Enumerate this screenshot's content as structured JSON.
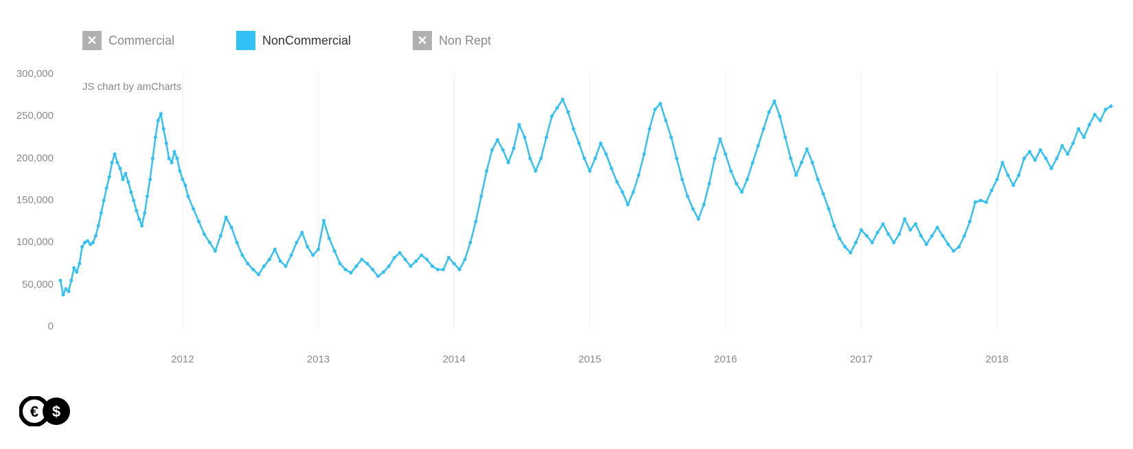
{
  "legend": {
    "items": [
      {
        "label": "Commercial",
        "active": false,
        "marker": "x",
        "color": "#b0b0b0"
      },
      {
        "label": "NonCommercial",
        "active": true,
        "marker": "box",
        "color": "#33c1f3"
      },
      {
        "label": "Non Rept",
        "active": false,
        "marker": "x",
        "color": "#b0b0b0"
      }
    ]
  },
  "credit": "JS chart by amCharts",
  "chart": {
    "type": "line",
    "background_color": "#ffffff",
    "grid_color": "#ececec",
    "series_color": "#33c1f3",
    "line_width": 2.5,
    "marker_radius": 2.5,
    "label_color": "#8a8a8a",
    "label_fontsize": 15,
    "y": {
      "min": 0,
      "max": 300000,
      "step": 50000,
      "ticks": [
        0,
        50000,
        100000,
        150000,
        200000,
        250000,
        300000
      ],
      "tick_labels": [
        "0",
        "50,000",
        "100,000",
        "150,000",
        "200,000",
        "250,000",
        "300,000"
      ]
    },
    "x": {
      "min": 2011.1,
      "max": 2018.85,
      "ticks": [
        2012,
        2013,
        2014,
        2015,
        2016,
        2017,
        2018
      ],
      "tick_labels": [
        "2012",
        "2013",
        "2014",
        "2015",
        "2016",
        "2017",
        "2018"
      ]
    },
    "series": [
      {
        "name": "NonCommercial",
        "points": [
          [
            2011.1,
            55000
          ],
          [
            2011.12,
            38000
          ],
          [
            2011.14,
            45000
          ],
          [
            2011.16,
            42000
          ],
          [
            2011.18,
            55000
          ],
          [
            2011.2,
            70000
          ],
          [
            2011.22,
            65000
          ],
          [
            2011.24,
            75000
          ],
          [
            2011.26,
            95000
          ],
          [
            2011.28,
            100000
          ],
          [
            2011.3,
            102000
          ],
          [
            2011.32,
            98000
          ],
          [
            2011.34,
            100000
          ],
          [
            2011.36,
            108000
          ],
          [
            2011.38,
            120000
          ],
          [
            2011.4,
            135000
          ],
          [
            2011.42,
            150000
          ],
          [
            2011.44,
            165000
          ],
          [
            2011.46,
            178000
          ],
          [
            2011.48,
            195000
          ],
          [
            2011.5,
            205000
          ],
          [
            2011.52,
            195000
          ],
          [
            2011.54,
            188000
          ],
          [
            2011.56,
            175000
          ],
          [
            2011.58,
            182000
          ],
          [
            2011.6,
            172000
          ],
          [
            2011.62,
            160000
          ],
          [
            2011.64,
            150000
          ],
          [
            2011.66,
            138000
          ],
          [
            2011.68,
            128000
          ],
          [
            2011.7,
            120000
          ],
          [
            2011.72,
            135000
          ],
          [
            2011.74,
            155000
          ],
          [
            2011.76,
            175000
          ],
          [
            2011.78,
            200000
          ],
          [
            2011.8,
            225000
          ],
          [
            2011.82,
            245000
          ],
          [
            2011.84,
            253000
          ],
          [
            2011.86,
            235000
          ],
          [
            2011.88,
            218000
          ],
          [
            2011.9,
            200000
          ],
          [
            2011.92,
            195000
          ],
          [
            2011.94,
            208000
          ],
          [
            2011.96,
            200000
          ],
          [
            2011.98,
            185000
          ],
          [
            2012.0,
            175000
          ],
          [
            2012.02,
            168000
          ],
          [
            2012.04,
            155000
          ],
          [
            2012.08,
            140000
          ],
          [
            2012.12,
            125000
          ],
          [
            2012.16,
            110000
          ],
          [
            2012.2,
            100000
          ],
          [
            2012.24,
            90000
          ],
          [
            2012.28,
            108000
          ],
          [
            2012.32,
            130000
          ],
          [
            2012.36,
            118000
          ],
          [
            2012.4,
            100000
          ],
          [
            2012.44,
            85000
          ],
          [
            2012.48,
            75000
          ],
          [
            2012.52,
            68000
          ],
          [
            2012.56,
            62000
          ],
          [
            2012.6,
            72000
          ],
          [
            2012.64,
            80000
          ],
          [
            2012.68,
            92000
          ],
          [
            2012.72,
            78000
          ],
          [
            2012.76,
            72000
          ],
          [
            2012.8,
            85000
          ],
          [
            2012.84,
            100000
          ],
          [
            2012.88,
            112000
          ],
          [
            2012.92,
            95000
          ],
          [
            2012.96,
            85000
          ],
          [
            2013.0,
            92000
          ],
          [
            2013.04,
            126000
          ],
          [
            2013.08,
            105000
          ],
          [
            2013.12,
            90000
          ],
          [
            2013.16,
            75000
          ],
          [
            2013.2,
            68000
          ],
          [
            2013.24,
            64000
          ],
          [
            2013.28,
            72000
          ],
          [
            2013.32,
            80000
          ],
          [
            2013.36,
            75000
          ],
          [
            2013.4,
            68000
          ],
          [
            2013.44,
            60000
          ],
          [
            2013.48,
            65000
          ],
          [
            2013.52,
            72000
          ],
          [
            2013.56,
            82000
          ],
          [
            2013.6,
            88000
          ],
          [
            2013.64,
            80000
          ],
          [
            2013.68,
            72000
          ],
          [
            2013.72,
            78000
          ],
          [
            2013.76,
            85000
          ],
          [
            2013.8,
            80000
          ],
          [
            2013.84,
            72000
          ],
          [
            2013.88,
            68000
          ],
          [
            2013.92,
            68000
          ],
          [
            2013.96,
            82000
          ],
          [
            2014.0,
            75000
          ],
          [
            2014.04,
            68000
          ],
          [
            2014.08,
            80000
          ],
          [
            2014.12,
            100000
          ],
          [
            2014.16,
            125000
          ],
          [
            2014.2,
            155000
          ],
          [
            2014.24,
            185000
          ],
          [
            2014.28,
            210000
          ],
          [
            2014.32,
            222000
          ],
          [
            2014.36,
            210000
          ],
          [
            2014.4,
            195000
          ],
          [
            2014.44,
            212000
          ],
          [
            2014.48,
            240000
          ],
          [
            2014.52,
            225000
          ],
          [
            2014.56,
            200000
          ],
          [
            2014.6,
            185000
          ],
          [
            2014.64,
            200000
          ],
          [
            2014.68,
            225000
          ],
          [
            2014.72,
            250000
          ],
          [
            2014.76,
            260000
          ],
          [
            2014.8,
            270000
          ],
          [
            2014.84,
            255000
          ],
          [
            2014.88,
            235000
          ],
          [
            2014.92,
            218000
          ],
          [
            2014.96,
            200000
          ],
          [
            2015.0,
            185000
          ],
          [
            2015.04,
            200000
          ],
          [
            2015.08,
            218000
          ],
          [
            2015.12,
            205000
          ],
          [
            2015.16,
            188000
          ],
          [
            2015.2,
            172000
          ],
          [
            2015.24,
            160000
          ],
          [
            2015.28,
            145000
          ],
          [
            2015.32,
            160000
          ],
          [
            2015.36,
            180000
          ],
          [
            2015.4,
            205000
          ],
          [
            2015.44,
            235000
          ],
          [
            2015.48,
            258000
          ],
          [
            2015.52,
            265000
          ],
          [
            2015.56,
            245000
          ],
          [
            2015.6,
            225000
          ],
          [
            2015.64,
            200000
          ],
          [
            2015.68,
            175000
          ],
          [
            2015.72,
            155000
          ],
          [
            2015.76,
            140000
          ],
          [
            2015.8,
            128000
          ],
          [
            2015.84,
            145000
          ],
          [
            2015.88,
            170000
          ],
          [
            2015.92,
            200000
          ],
          [
            2015.96,
            223000
          ],
          [
            2016.0,
            205000
          ],
          [
            2016.04,
            185000
          ],
          [
            2016.08,
            170000
          ],
          [
            2016.12,
            160000
          ],
          [
            2016.16,
            175000
          ],
          [
            2016.2,
            195000
          ],
          [
            2016.24,
            215000
          ],
          [
            2016.28,
            235000
          ],
          [
            2016.32,
            255000
          ],
          [
            2016.36,
            268000
          ],
          [
            2016.4,
            250000
          ],
          [
            2016.44,
            225000
          ],
          [
            2016.48,
            200000
          ],
          [
            2016.52,
            180000
          ],
          [
            2016.56,
            195000
          ],
          [
            2016.6,
            211000
          ],
          [
            2016.64,
            195000
          ],
          [
            2016.68,
            175000
          ],
          [
            2016.72,
            158000
          ],
          [
            2016.76,
            140000
          ],
          [
            2016.8,
            120000
          ],
          [
            2016.84,
            105000
          ],
          [
            2016.88,
            95000
          ],
          [
            2016.92,
            88000
          ],
          [
            2016.96,
            100000
          ],
          [
            2017.0,
            115000
          ],
          [
            2017.04,
            108000
          ],
          [
            2017.08,
            100000
          ],
          [
            2017.12,
            112000
          ],
          [
            2017.16,
            122000
          ],
          [
            2017.2,
            110000
          ],
          [
            2017.24,
            100000
          ],
          [
            2017.28,
            110000
          ],
          [
            2017.32,
            128000
          ],
          [
            2017.36,
            115000
          ],
          [
            2017.4,
            122000
          ],
          [
            2017.44,
            108000
          ],
          [
            2017.48,
            98000
          ],
          [
            2017.52,
            108000
          ],
          [
            2017.56,
            118000
          ],
          [
            2017.6,
            108000
          ],
          [
            2017.64,
            98000
          ],
          [
            2017.68,
            90000
          ],
          [
            2017.72,
            95000
          ],
          [
            2017.76,
            108000
          ],
          [
            2017.8,
            125000
          ],
          [
            2017.84,
            148000
          ],
          [
            2017.88,
            150000
          ],
          [
            2017.92,
            148000
          ],
          [
            2017.96,
            162000
          ],
          [
            2018.0,
            175000
          ],
          [
            2018.04,
            195000
          ],
          [
            2018.08,
            180000
          ],
          [
            2018.12,
            168000
          ],
          [
            2018.16,
            180000
          ],
          [
            2018.2,
            200000
          ],
          [
            2018.24,
            208000
          ],
          [
            2018.28,
            198000
          ],
          [
            2018.32,
            210000
          ],
          [
            2018.36,
            200000
          ],
          [
            2018.4,
            188000
          ],
          [
            2018.44,
            200000
          ],
          [
            2018.48,
            215000
          ],
          [
            2018.52,
            205000
          ],
          [
            2018.56,
            218000
          ],
          [
            2018.6,
            235000
          ],
          [
            2018.64,
            225000
          ],
          [
            2018.68,
            240000
          ],
          [
            2018.72,
            252000
          ],
          [
            2018.76,
            245000
          ],
          [
            2018.8,
            258000
          ],
          [
            2018.84,
            262000
          ]
        ]
      }
    ]
  },
  "footer_logo": {
    "symbol1": "€",
    "symbol2": "$"
  }
}
